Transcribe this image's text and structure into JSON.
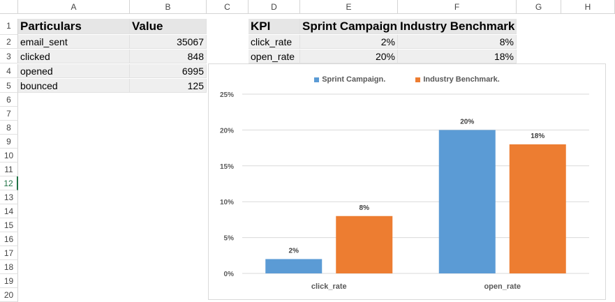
{
  "columns": [
    "A",
    "B",
    "C",
    "D",
    "E",
    "F",
    "G",
    "H"
  ],
  "rows": [
    "1",
    "2",
    "3",
    "4",
    "5",
    "6",
    "7",
    "8",
    "9",
    "10",
    "11",
    "12",
    "13",
    "14",
    "15",
    "16",
    "17",
    "18",
    "19",
    "20"
  ],
  "selected_row": "12",
  "table1": {
    "headers": [
      "Particulars",
      "Value"
    ],
    "rows": [
      {
        "label": "email_sent",
        "value": "35067"
      },
      {
        "label": "clicked",
        "value": "848"
      },
      {
        "label": "opened",
        "value": "6995"
      },
      {
        "label": "bounced",
        "value": "125"
      }
    ]
  },
  "table2": {
    "headers": [
      "KPI",
      "Sprint Campaign",
      "Industry Benchmark"
    ],
    "rows": [
      {
        "kpi": "click_rate",
        "sprint": "2%",
        "bench": "8%"
      },
      {
        "kpi": "open_rate",
        "sprint": "20%",
        "bench": "18%"
      }
    ]
  },
  "chart_data": {
    "type": "bar",
    "categories": [
      "click_rate",
      "open_rate"
    ],
    "series": [
      {
        "name": "Sprint Campaign.",
        "values": [
          2,
          20
        ],
        "labels": [
          "2%",
          "20%"
        ],
        "color": "#5b9bd5"
      },
      {
        "name": "Industry Benchmark.",
        "values": [
          8,
          18
        ],
        "labels": [
          "8%",
          "18%"
        ],
        "color": "#ed7d31"
      }
    ],
    "ylim": [
      0,
      25
    ],
    "yticks": [
      "0%",
      "5%",
      "10%",
      "15%",
      "20%",
      "25%"
    ],
    "grid": true,
    "legend_position": "top"
  }
}
